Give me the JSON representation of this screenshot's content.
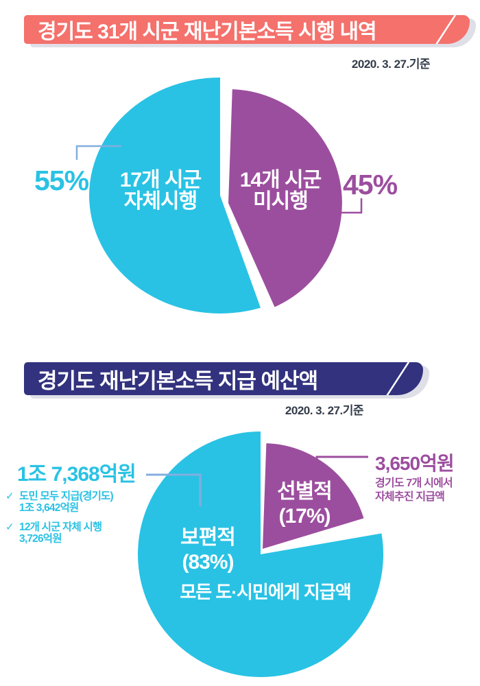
{
  "section1": {
    "banner": {
      "title": "경기도 31개 시군 재난기본소득 시행 내역",
      "bg_color": "#F4716C"
    },
    "date_note": "2020. 3. 27.기준"
  },
  "section2": {
    "banner": {
      "title": "경기도 재난기본소득 지급 예산액",
      "bg_color": "#32327F"
    },
    "date_note": "2020. 3. 27.기준",
    "annotation_left": {
      "amount": "1조 7,368억원",
      "check_icon": "✓",
      "items": [
        {
          "line1": "도민 모두 지급(경기도)",
          "line2": "1조 3,642억원"
        },
        {
          "line1": "12개 시군 자체 시행",
          "line2": "3,726억원"
        }
      ]
    },
    "annotation_right": {
      "amount": "3,650억원",
      "desc_line1": "경기도 7개 시에서",
      "desc_line2": "자체추진 지급액"
    }
  },
  "colors": {
    "cyan": "#29C2E4",
    "purple": "#9C4E9E",
    "coral_banner": "#F4716C",
    "navy_banner": "#32327F",
    "connector_blue": "#82AEDF",
    "date_text": "#333C49"
  },
  "chart_data": [
    {
      "type": "pie",
      "title": "경기도 31개 시군 재난기본소득 시행 내역",
      "as_of": "2020. 3. 27.기준",
      "legend_position": "inside",
      "slices": [
        {
          "name_line1": "17개 시군",
          "name_line2": "자체시행",
          "value_pct": 55,
          "callout": "55%",
          "color": "#29C2E4"
        },
        {
          "name_line1": "14개 시군",
          "name_line2": "미시행",
          "value_pct": 45,
          "callout": "45%",
          "color": "#9C4E9E"
        }
      ]
    },
    {
      "type": "pie",
      "title": "경기도 재난기본소득 지급 예산액",
      "as_of": "2020. 3. 27.기준",
      "legend_position": "inside",
      "slices": [
        {
          "name": "보편적",
          "pct_label": "(83%)",
          "value_pct": 83,
          "note": "모든 도·시민에게 지급액",
          "amount": "1조 7,368억원",
          "color": "#29C2E4",
          "breakdown": [
            "도민 모두 지급(경기도) 1조 3,642억원",
            "12개 시군 자체 시행 3,726억원"
          ]
        },
        {
          "name": "선별적",
          "pct_label": "(17%)",
          "value_pct": 17,
          "amount": "3,650억원",
          "desc": "경기도 7개 시에서 자체추진 지급액",
          "color": "#9C4E9E"
        }
      ]
    }
  ]
}
